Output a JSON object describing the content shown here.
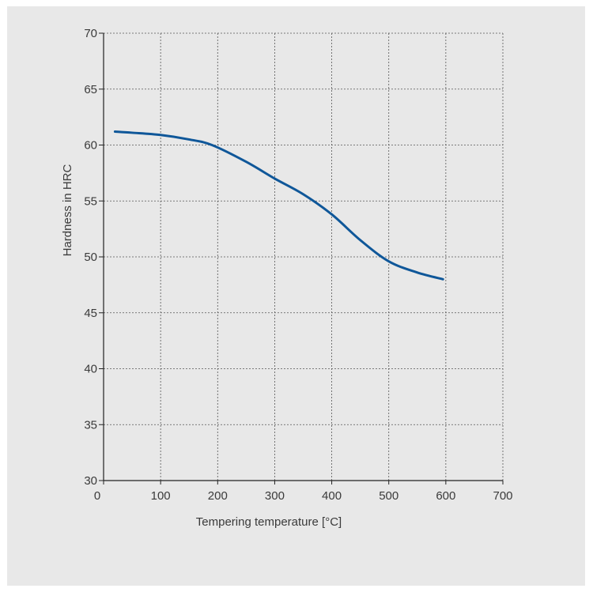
{
  "chart_data": {
    "type": "line",
    "title": "",
    "xlabel": "Tempering temperature [°C]",
    "ylabel": "Hardness in HRC",
    "xlim": [
      0,
      700
    ],
    "ylim": [
      30,
      70
    ],
    "xticks": [
      0,
      100,
      200,
      300,
      400,
      500,
      600,
      700
    ],
    "yticks": [
      30,
      35,
      40,
      45,
      50,
      55,
      60,
      65,
      70
    ],
    "grid": true,
    "legend": "none",
    "series": [
      {
        "color": "#0f5799",
        "x": [
          20,
          50,
          100,
          150,
          190,
          250,
          300,
          350,
          400,
          450,
          500,
          550,
          595
        ],
        "y": [
          61.2,
          61.1,
          60.9,
          60.5,
          60.0,
          58.5,
          57.0,
          55.6,
          53.8,
          51.5,
          49.6,
          48.6,
          48.0
        ]
      }
    ]
  }
}
